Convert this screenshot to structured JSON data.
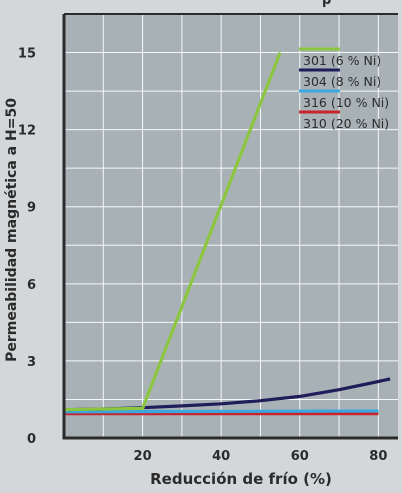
{
  "chart_data": {
    "type": "line",
    "title": "p",
    "xlabel": "Reducción de frío (%)",
    "ylabel": "Permeabilidad magnética a H=50",
    "xlim": [
      0,
      85
    ],
    "ylim": [
      0,
      16.5
    ],
    "x_ticks": [
      20,
      40,
      60,
      80
    ],
    "x_tick_labels": [
      "20",
      "40",
      "60",
      "80"
    ],
    "y_ticks": [
      0,
      3,
      6,
      9,
      12,
      15
    ],
    "y_tick_labels": [
      "0",
      "3",
      "6",
      "9",
      "12",
      "15"
    ],
    "grid": true,
    "legend_position": "top-right",
    "series": [
      {
        "name": "301 (6 % Ni)",
        "color": "#8cc641",
        "points": [
          [
            0,
            1.1
          ],
          [
            20,
            1.15
          ],
          [
            55,
            15.0
          ]
        ]
      },
      {
        "name": "304 (8 % Ni)",
        "color": "#1f1d5a",
        "points": [
          [
            0,
            1.1
          ],
          [
            10,
            1.13
          ],
          [
            20,
            1.18
          ],
          [
            30,
            1.25
          ],
          [
            40,
            1.33
          ],
          [
            50,
            1.45
          ],
          [
            60,
            1.62
          ],
          [
            70,
            1.88
          ],
          [
            80,
            2.2
          ],
          [
            83,
            2.3
          ]
        ]
      },
      {
        "name": "316 (10 % Ni)",
        "color": "#3aa7df",
        "points": [
          [
            0,
            1.02
          ],
          [
            80,
            1.05
          ]
        ]
      },
      {
        "name": "310 (20 % Ni)",
        "color": "#c9242b",
        "points": [
          [
            0,
            0.95
          ],
          [
            80,
            0.95
          ]
        ]
      }
    ]
  }
}
